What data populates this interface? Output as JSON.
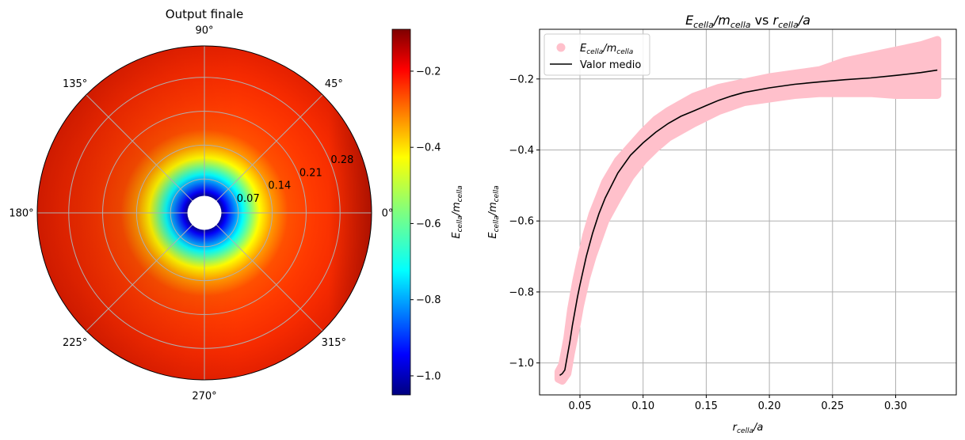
{
  "chart_data": [
    {
      "type": "heatmap",
      "projection": "polar",
      "title": "Output finale",
      "colormap": "jet",
      "colorbar": {
        "label": "E_cella/m_cella",
        "range": [
          -1.05,
          -0.09
        ],
        "ticks": [
          -1.0,
          -0.8,
          -0.6,
          -0.4,
          -0.2
        ],
        "tick_labels": [
          "−1.0",
          "−0.8",
          "−0.6",
          "−0.4",
          "−0.2"
        ]
      },
      "angular_ticks": [
        0,
        45,
        90,
        135,
        180,
        225,
        270,
        315
      ],
      "angular_tick_labels": [
        "0°",
        "45°",
        "90°",
        "135°",
        "180°",
        "225°",
        "270°",
        "315°"
      ],
      "radial_ticks": [
        0.07,
        0.14,
        0.21,
        0.28
      ],
      "radial_tick_labels": [
        "0.07",
        "0.14",
        "0.21",
        "0.28"
      ],
      "rmax": 0.345,
      "hole_radius": 0.035,
      "grid": true
    },
    {
      "type": "scatter",
      "title": "E_cella/m_cella vs r_cella/a",
      "xlabel": "r_cella/a",
      "ylabel": "E_cella/m_cella",
      "xlim": [
        0.018,
        0.348
      ],
      "ylim": [
        -1.09,
        -0.06
      ],
      "xticks": [
        0.05,
        0.1,
        0.15,
        0.2,
        0.25,
        0.3
      ],
      "xtick_labels": [
        "0.05",
        "0.10",
        "0.15",
        "0.20",
        "0.25",
        "0.30"
      ],
      "yticks": [
        -1.0,
        -0.8,
        -0.6,
        -0.4,
        -0.2
      ],
      "ytick_labels": [
        "−1.0",
        "−0.8",
        "−0.6",
        "−0.4",
        "−0.2"
      ],
      "grid": true,
      "legend_position": "upper-left",
      "series": [
        {
          "name": "E_cella/m_cella",
          "kind": "scatter-band",
          "color": "#ffc0cb",
          "x": [
            0.033,
            0.036,
            0.04,
            0.043,
            0.047,
            0.05,
            0.055,
            0.06,
            0.07,
            0.08,
            0.09,
            0.1,
            0.11,
            0.12,
            0.14,
            0.16,
            0.18,
            0.2,
            0.22,
            0.24,
            0.26,
            0.28,
            0.3,
            0.32,
            0.333
          ],
          "y_low": [
            -1.045,
            -1.05,
            -1.03,
            -0.97,
            -0.9,
            -0.84,
            -0.76,
            -0.7,
            -0.6,
            -0.535,
            -0.475,
            -0.43,
            -0.395,
            -0.365,
            -0.325,
            -0.29,
            -0.265,
            -0.255,
            -0.245,
            -0.24,
            -0.24,
            -0.24,
            -0.245,
            -0.245,
            -0.245
          ],
          "y_high": [
            -1.025,
            -1.005,
            -0.93,
            -0.85,
            -0.77,
            -0.72,
            -0.64,
            -0.58,
            -0.49,
            -0.43,
            -0.39,
            -0.35,
            -0.315,
            -0.29,
            -0.25,
            -0.225,
            -0.21,
            -0.195,
            -0.185,
            -0.175,
            -0.15,
            -0.135,
            -0.12,
            -0.105,
            -0.09
          ]
        },
        {
          "name": "Valor medio",
          "kind": "line",
          "color": "#000000",
          "x": [
            0.034,
            0.036,
            0.038,
            0.04,
            0.042,
            0.044,
            0.046,
            0.048,
            0.05,
            0.055,
            0.06,
            0.065,
            0.07,
            0.08,
            0.09,
            0.1,
            0.11,
            0.12,
            0.13,
            0.14,
            0.15,
            0.16,
            0.17,
            0.18,
            0.2,
            0.22,
            0.24,
            0.26,
            0.28,
            0.3,
            0.32,
            0.333
          ],
          "y": [
            -1.035,
            -1.03,
            -1.02,
            -0.98,
            -0.94,
            -0.895,
            -0.855,
            -0.815,
            -0.78,
            -0.7,
            -0.635,
            -0.58,
            -0.535,
            -0.465,
            -0.415,
            -0.38,
            -0.35,
            -0.325,
            -0.305,
            -0.29,
            -0.275,
            -0.26,
            -0.248,
            -0.238,
            -0.225,
            -0.215,
            -0.208,
            -0.202,
            -0.197,
            -0.19,
            -0.182,
            -0.175
          ]
        }
      ]
    }
  ]
}
